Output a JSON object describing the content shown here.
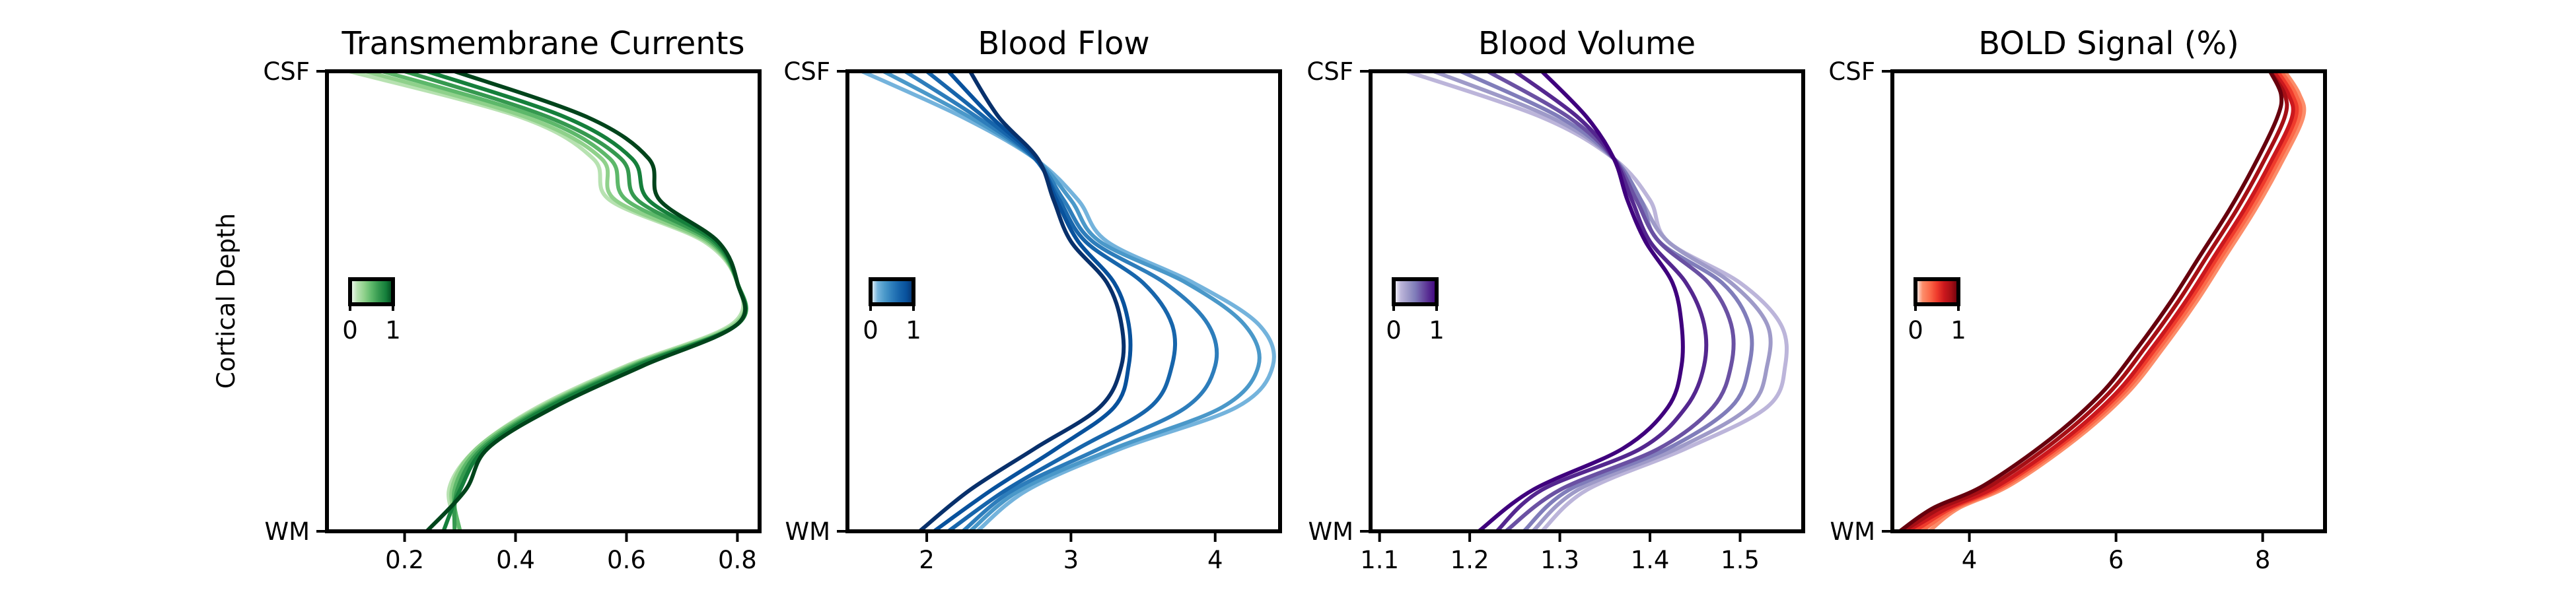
{
  "figure": {
    "ylabel": "Cortical Depth",
    "ytick_top": "CSF",
    "ytick_bottom": "WM"
  },
  "chart_data": [
    {
      "type": "line",
      "title": "Transmembrane Currents",
      "xlim": [
        0.06,
        0.84
      ],
      "xticks": [
        0.2,
        0.4,
        0.6,
        0.8
      ],
      "xtick_labels": [
        "0.2",
        "0.4",
        "0.6",
        "0.8"
      ],
      "colorbar_ticks": [
        "0",
        "1"
      ],
      "colors": [
        "#b7e2b1",
        "#8fd18b",
        "#5db86a",
        "#35994f",
        "#157f3b",
        "#00441b"
      ],
      "y": [
        0,
        0.09,
        0.18,
        0.27,
        0.36,
        0.45,
        0.54,
        0.63,
        0.72,
        0.81,
        0.9,
        1.0
      ],
      "series": [
        {
          "x": [
            0.3,
            0.28,
            0.33,
            0.44,
            0.6,
            0.79,
            0.8,
            0.74,
            0.57,
            0.54,
            0.41,
            0.1
          ]
        },
        {
          "x": [
            0.3,
            0.285,
            0.33,
            0.445,
            0.605,
            0.795,
            0.8,
            0.745,
            0.58,
            0.555,
            0.42,
            0.13
          ]
        },
        {
          "x": [
            0.3,
            0.29,
            0.335,
            0.45,
            0.61,
            0.8,
            0.8,
            0.75,
            0.6,
            0.57,
            0.44,
            0.16
          ]
        },
        {
          "x": [
            0.29,
            0.295,
            0.34,
            0.455,
            0.615,
            0.8,
            0.8,
            0.755,
            0.62,
            0.59,
            0.46,
            0.2
          ]
        },
        {
          "x": [
            0.27,
            0.3,
            0.345,
            0.46,
            0.62,
            0.8,
            0.8,
            0.76,
            0.64,
            0.61,
            0.49,
            0.24
          ]
        },
        {
          "x": [
            0.24,
            0.31,
            0.35,
            0.47,
            0.63,
            0.8,
            0.8,
            0.765,
            0.66,
            0.64,
            0.53,
            0.29
          ]
        }
      ]
    },
    {
      "type": "line",
      "title": "Blood Flow",
      "xlim": [
        1.45,
        4.45
      ],
      "xticks": [
        2,
        3,
        4
      ],
      "xtick_labels": [
        "2",
        "3",
        "4"
      ],
      "colorbar_ticks": [
        "0",
        "1"
      ],
      "colors": [
        "#74b3dc",
        "#4a98c9",
        "#2d7dbb",
        "#1765ab",
        "#08519c",
        "#08306b"
      ],
      "y": [
        0,
        0.09,
        0.18,
        0.27,
        0.36,
        0.45,
        0.54,
        0.63,
        0.72,
        0.81,
        0.9,
        1.0
      ],
      "series": [
        {
          "x": [
            2.35,
            2.7,
            3.35,
            4.15,
            4.4,
            4.3,
            3.85,
            3.25,
            3.05,
            2.75,
            2.25,
            1.55
          ]
        },
        {
          "x": [
            2.3,
            2.65,
            3.3,
            4.05,
            4.3,
            4.2,
            3.8,
            3.2,
            3.0,
            2.75,
            2.3,
            1.7
          ]
        },
        {
          "x": [
            2.25,
            2.6,
            3.2,
            3.8,
            4.0,
            3.95,
            3.65,
            3.15,
            2.95,
            2.75,
            2.35,
            1.85
          ]
        },
        {
          "x": [
            2.15,
            2.55,
            3.05,
            3.55,
            3.7,
            3.7,
            3.5,
            3.1,
            2.92,
            2.75,
            2.4,
            2.0
          ]
        },
        {
          "x": [
            2.05,
            2.45,
            2.9,
            3.3,
            3.4,
            3.4,
            3.3,
            3.05,
            2.9,
            2.76,
            2.45,
            2.15
          ]
        },
        {
          "x": [
            1.95,
            2.3,
            2.75,
            3.2,
            3.35,
            3.35,
            3.25,
            3.0,
            2.88,
            2.77,
            2.5,
            2.3
          ]
        }
      ]
    },
    {
      "type": "line",
      "title": "Blood Volume",
      "xlim": [
        1.09,
        1.57
      ],
      "xticks": [
        1.1,
        1.2,
        1.3,
        1.4,
        1.5
      ],
      "xtick_labels": [
        "1.1",
        "1.2",
        "1.3",
        "1.4",
        "1.5"
      ],
      "colorbar_ticks": [
        "0",
        "1"
      ],
      "colors": [
        "#bcb5da",
        "#9e9ac8",
        "#807dba",
        "#6a51a3",
        "#54278f",
        "#3f007d"
      ],
      "y": [
        0,
        0.09,
        0.18,
        0.27,
        0.36,
        0.45,
        0.54,
        0.63,
        0.72,
        0.81,
        0.9,
        1.0
      ],
      "series": [
        {
          "x": [
            1.28,
            1.33,
            1.44,
            1.53,
            1.55,
            1.545,
            1.5,
            1.42,
            1.4,
            1.36,
            1.28,
            1.13
          ]
        },
        {
          "x": [
            1.27,
            1.32,
            1.43,
            1.51,
            1.53,
            1.53,
            1.49,
            1.42,
            1.39,
            1.36,
            1.29,
            1.16
          ]
        },
        {
          "x": [
            1.26,
            1.31,
            1.42,
            1.49,
            1.51,
            1.51,
            1.48,
            1.41,
            1.39,
            1.36,
            1.3,
            1.19
          ]
        },
        {
          "x": [
            1.24,
            1.3,
            1.41,
            1.47,
            1.49,
            1.49,
            1.465,
            1.41,
            1.385,
            1.36,
            1.31,
            1.22
          ]
        },
        {
          "x": [
            1.23,
            1.28,
            1.39,
            1.44,
            1.46,
            1.46,
            1.44,
            1.4,
            1.38,
            1.36,
            1.32,
            1.25
          ]
        },
        {
          "x": [
            1.21,
            1.27,
            1.37,
            1.42,
            1.435,
            1.435,
            1.425,
            1.395,
            1.375,
            1.36,
            1.33,
            1.28
          ]
        }
      ]
    },
    {
      "type": "line",
      "title": "BOLD Signal (%)",
      "xlim": [
        2.95,
        8.85
      ],
      "xticks": [
        4,
        6,
        8
      ],
      "xtick_labels": [
        "4",
        "6",
        "8"
      ],
      "colorbar_ticks": [
        "0",
        "1"
      ],
      "colors": [
        "#fc8d6a",
        "#fb6a4a",
        "#ef3b2c",
        "#cb181d",
        "#a50f15",
        "#67000d"
      ],
      "y": [
        0,
        0.05,
        0.1,
        0.2,
        0.3,
        0.4,
        0.5,
        0.6,
        0.7,
        0.8,
        0.9,
        0.95,
        1.0
      ],
      "series": [
        {
          "x": [
            3.45,
            3.85,
            4.55,
            5.45,
            6.15,
            6.65,
            7.1,
            7.5,
            7.9,
            8.25,
            8.55,
            8.5,
            8.3
          ]
        },
        {
          "x": [
            3.35,
            3.8,
            4.5,
            5.4,
            6.1,
            6.6,
            7.05,
            7.45,
            7.85,
            8.2,
            8.5,
            8.45,
            8.25
          ]
        },
        {
          "x": [
            3.25,
            3.75,
            4.45,
            5.35,
            6.05,
            6.55,
            7.0,
            7.4,
            7.8,
            8.15,
            8.45,
            8.4,
            8.2
          ]
        },
        {
          "x": [
            3.15,
            3.7,
            4.4,
            5.3,
            6.0,
            6.5,
            6.95,
            7.35,
            7.75,
            8.1,
            8.4,
            8.35,
            8.15
          ]
        },
        {
          "x": [
            3.1,
            3.6,
            4.3,
            5.2,
            5.9,
            6.4,
            6.85,
            7.25,
            7.65,
            8.0,
            8.3,
            8.3,
            8.1
          ]
        },
        {
          "x": [
            3.05,
            3.5,
            4.2,
            5.1,
            5.8,
            6.3,
            6.75,
            7.15,
            7.55,
            7.9,
            8.2,
            8.25,
            8.1
          ]
        }
      ]
    }
  ]
}
